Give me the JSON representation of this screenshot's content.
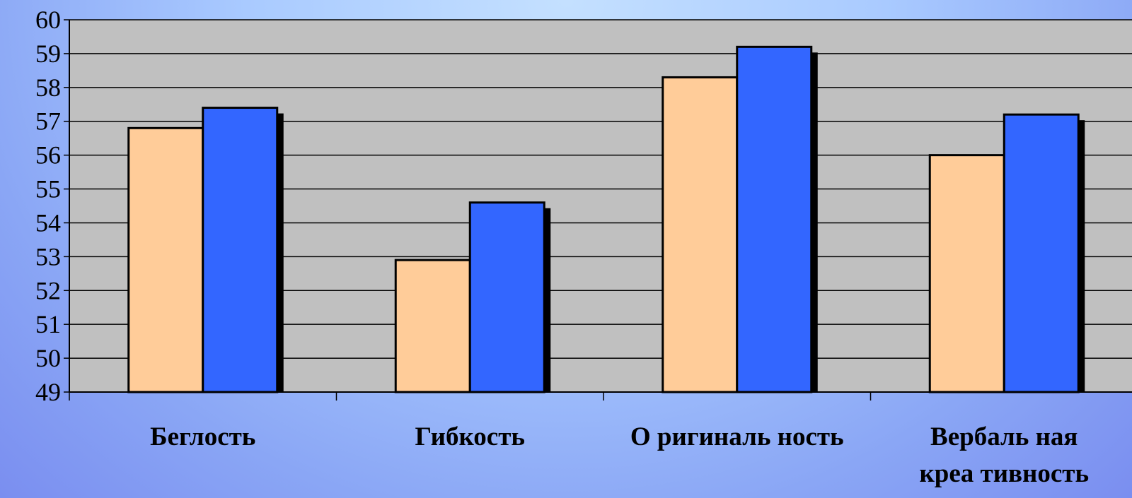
{
  "chart_data": {
    "type": "bar",
    "categories": [
      "Беглость",
      "Гибкость",
      "О ригиналь ность",
      "Вербаль ная креативность"
    ],
    "category_lines": [
      [
        "Беглость"
      ],
      [
        "Гибкость"
      ],
      [
        "О ригиналь ность"
      ],
      [
        "Вербаль ная",
        "креа тивность"
      ]
    ],
    "series": [
      {
        "values": [
          56.8,
          52.9,
          58.3,
          56.0
        ],
        "color": "#ffcc99"
      },
      {
        "values": [
          57.4,
          54.6,
          59.2,
          57.2
        ],
        "color": "#3366ff"
      }
    ],
    "ylim": [
      49,
      60
    ],
    "yticks": [
      49,
      50,
      51,
      52,
      53,
      54,
      55,
      56,
      57,
      58,
      59,
      60
    ],
    "grid": true,
    "legend": "none",
    "plot_background": "#c0c0c0",
    "shadow_color": "#000000"
  }
}
